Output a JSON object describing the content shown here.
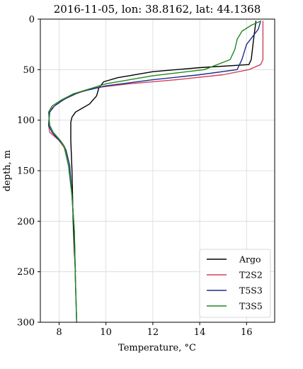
{
  "chart_data": {
    "type": "line",
    "title": "2016-11-05, lon: 38.8162,  lat: 44.1368",
    "xlabel": "Temperature, °C",
    "ylabel": "depth, m",
    "xlim": [
      7.2,
      17.2
    ],
    "ylim": [
      300,
      0
    ],
    "y_inverted": true,
    "xticks": [
      8,
      10,
      12,
      14,
      16
    ],
    "yticks": [
      0,
      50,
      100,
      150,
      200,
      250,
      300
    ],
    "grid": true,
    "legend_position": "lower-right",
    "series": [
      {
        "name": "Argo",
        "color": "#000000",
        "points": [
          [
            16.4,
            2
          ],
          [
            16.3,
            20
          ],
          [
            16.2,
            40
          ],
          [
            16.1,
            45
          ],
          [
            14.0,
            48
          ],
          [
            12.0,
            52
          ],
          [
            10.5,
            58
          ],
          [
            9.9,
            62
          ],
          [
            9.7,
            68
          ],
          [
            9.6,
            76
          ],
          [
            9.3,
            84
          ],
          [
            9.0,
            88
          ],
          [
            8.7,
            92
          ],
          [
            8.55,
            97
          ],
          [
            8.5,
            102
          ],
          [
            8.5,
            120
          ],
          [
            8.55,
            150
          ],
          [
            8.6,
            200
          ],
          [
            8.65,
            230
          ],
          [
            8.7,
            250
          ]
        ]
      },
      {
        "name": "T2S2",
        "color": "#d0425a",
        "points": [
          [
            16.7,
            2
          ],
          [
            16.7,
            40
          ],
          [
            16.6,
            45
          ],
          [
            16.1,
            50
          ],
          [
            15.0,
            55
          ],
          [
            13.0,
            60
          ],
          [
            11.0,
            64
          ],
          [
            9.5,
            68
          ],
          [
            8.7,
            74
          ],
          [
            8.0,
            82
          ],
          [
            7.6,
            90
          ],
          [
            7.55,
            105
          ],
          [
            7.6,
            112
          ],
          [
            8.0,
            120
          ],
          [
            8.3,
            130
          ],
          [
            8.45,
            145
          ],
          [
            8.55,
            175
          ],
          [
            8.65,
            210
          ],
          [
            8.7,
            260
          ],
          [
            8.75,
            300
          ]
        ]
      },
      {
        "name": "T5S3",
        "color": "#1f2d8a",
        "points": [
          [
            16.6,
            2
          ],
          [
            16.5,
            10
          ],
          [
            16.0,
            25
          ],
          [
            15.8,
            40
          ],
          [
            15.6,
            50
          ],
          [
            14.0,
            55
          ],
          [
            12.0,
            60
          ],
          [
            10.0,
            66
          ],
          [
            8.9,
            72
          ],
          [
            8.3,
            78
          ],
          [
            7.8,
            86
          ],
          [
            7.6,
            92
          ],
          [
            7.55,
            105
          ],
          [
            7.7,
            112
          ],
          [
            8.0,
            120
          ],
          [
            8.2,
            125
          ],
          [
            8.3,
            130
          ],
          [
            8.45,
            145
          ],
          [
            8.55,
            175
          ],
          [
            8.65,
            210
          ],
          [
            8.7,
            260
          ],
          [
            8.75,
            300
          ]
        ]
      },
      {
        "name": "T3S5",
        "color": "#1e8a1e",
        "points": [
          [
            16.6,
            2
          ],
          [
            16.2,
            6
          ],
          [
            15.8,
            12
          ],
          [
            15.6,
            20
          ],
          [
            15.5,
            30
          ],
          [
            15.3,
            40
          ],
          [
            14.2,
            50
          ],
          [
            12.0,
            56
          ],
          [
            10.0,
            64
          ],
          [
            8.6,
            74
          ],
          [
            8.1,
            80
          ],
          [
            7.7,
            86
          ],
          [
            7.55,
            92
          ],
          [
            7.6,
            105
          ],
          [
            7.75,
            112
          ],
          [
            8.05,
            120
          ],
          [
            8.2,
            125
          ],
          [
            8.4,
            145
          ],
          [
            8.55,
            175
          ],
          [
            8.65,
            210
          ],
          [
            8.7,
            260
          ],
          [
            8.75,
            300
          ]
        ]
      }
    ]
  }
}
